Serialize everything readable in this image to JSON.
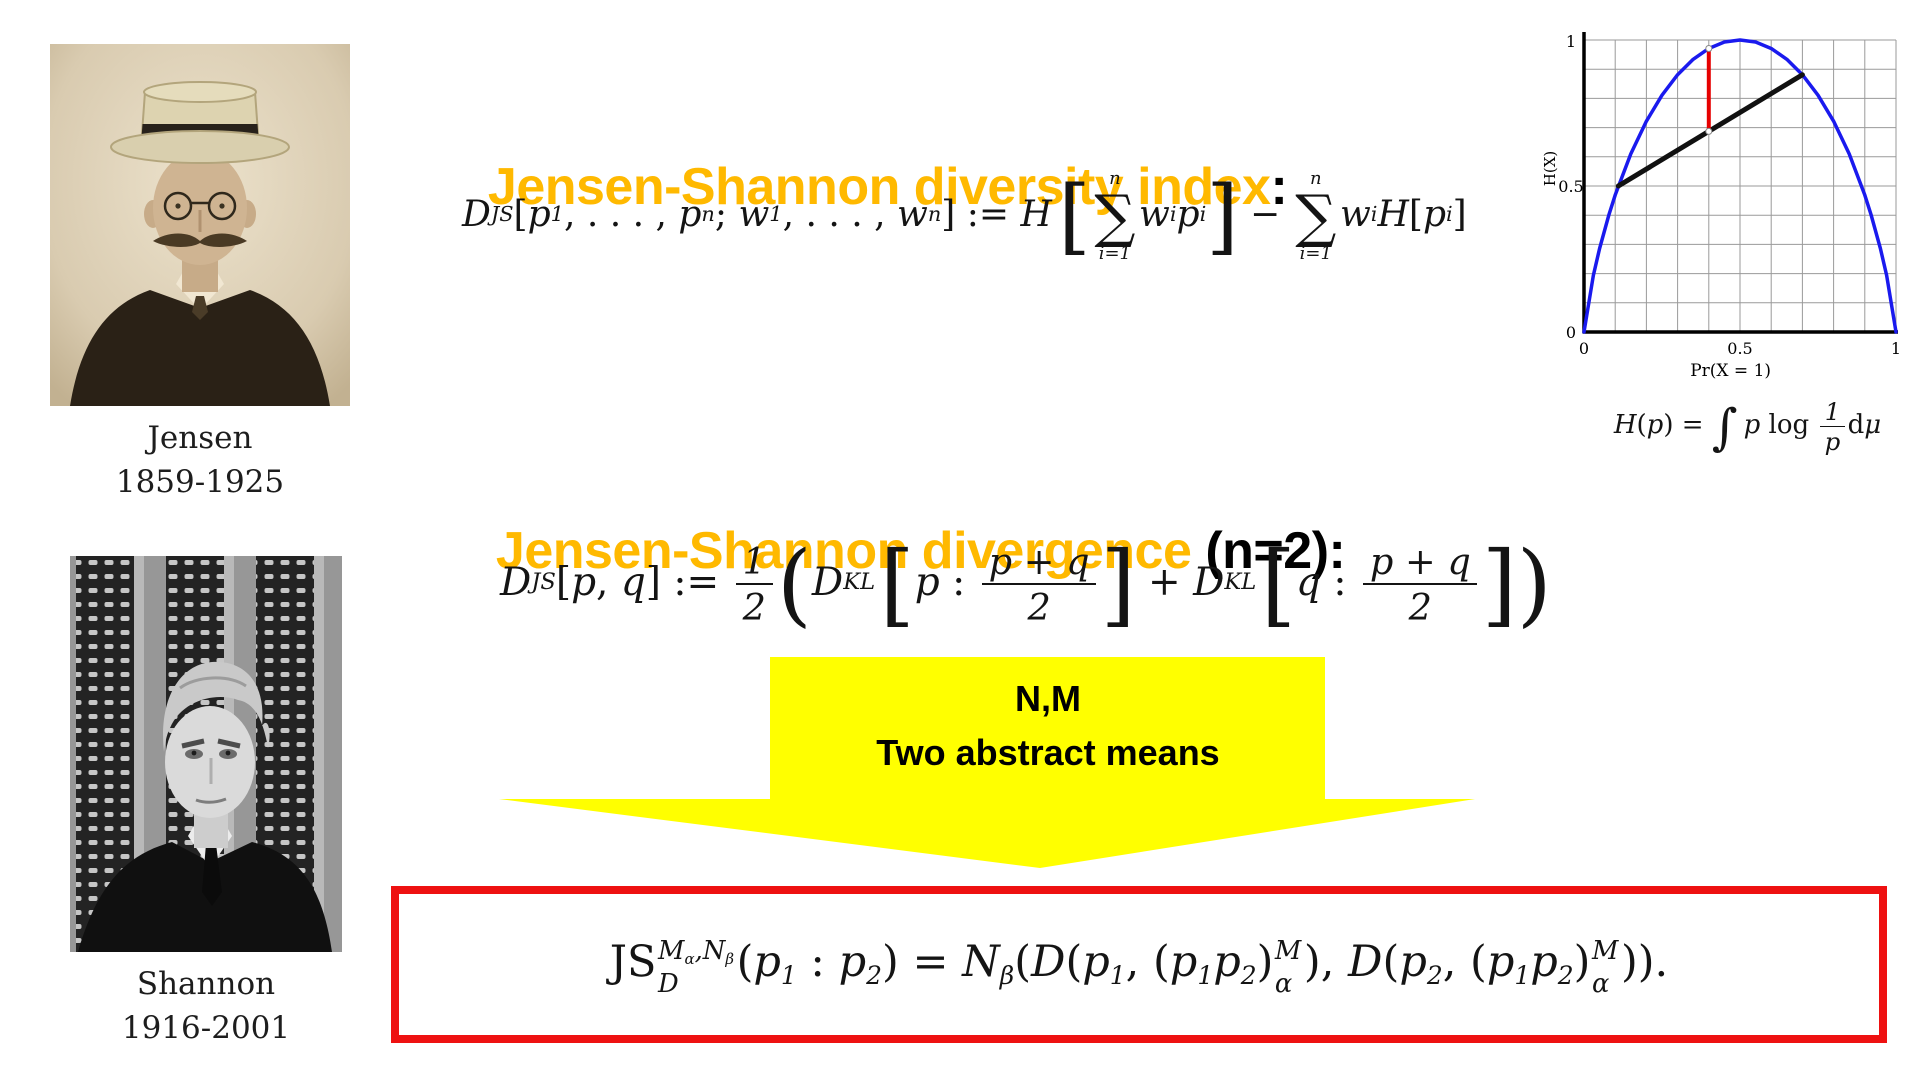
{
  "palette": {
    "orange": "#FFB900",
    "yellow": "#FFFF00",
    "red": "#EE1111",
    "blue": "#1A1AEE"
  },
  "portraits": {
    "jensen": {
      "name": "Jensen",
      "years": "1859-1925"
    },
    "shannon": {
      "name": "Shannon",
      "years": "1916-2001"
    }
  },
  "headings": {
    "diversity_title": "Jensen-Shannon diversity index",
    "diversity_colon": ":",
    "divergence_title": "Jensen-Shannon divergence",
    "divergence_suffix": " (n=2):"
  },
  "arrow": {
    "line1": "N,M",
    "line2": "Two abstract means"
  },
  "formulas": {
    "diversity": [
      {
        "t": "D"
      },
      {
        "sub": "JS"
      },
      {
        "r": "["
      },
      {
        "t": "p"
      },
      {
        "sub": "1"
      },
      {
        "r": ", . . . , "
      },
      {
        "t": "p"
      },
      {
        "sub": "n"
      },
      {
        "r": "; "
      },
      {
        "t": "w"
      },
      {
        "sub": "1"
      },
      {
        "r": ", . . . , "
      },
      {
        "t": "w"
      },
      {
        "sub": "n"
      },
      {
        "r": "] := "
      },
      {
        "t": "H"
      },
      {
        "sp": 0.18
      },
      {
        "b": "["
      },
      {
        "sum": {
          "top": "n",
          "bot": "i=1"
        }
      },
      {
        "t": "w"
      },
      {
        "sub": "i"
      },
      {
        "t": "p"
      },
      {
        "sub": "i"
      },
      {
        "b": "]"
      },
      {
        "r": " − "
      },
      {
        "sum": {
          "top": "n",
          "bot": "i=1"
        }
      },
      {
        "t": "w"
      },
      {
        "sub": "i"
      },
      {
        "t": "H"
      },
      {
        "r": "["
      },
      {
        "t": "p"
      },
      {
        "sub": "i"
      },
      {
        "r": "]"
      }
    ],
    "entropy": [
      {
        "t": "H"
      },
      {
        "r": "("
      },
      {
        "t": "p"
      },
      {
        "r": ") = "
      },
      {
        "int": true
      },
      {
        "sp": 0.12
      },
      {
        "t": "p"
      },
      {
        "r": " log "
      },
      {
        "frac": {
          "n": "1",
          "d": "p"
        }
      },
      {
        "r": "d"
      },
      {
        "t": "μ"
      }
    ],
    "divergence": [
      {
        "t": "D"
      },
      {
        "sub": "JS"
      },
      {
        "r": "["
      },
      {
        "t": "p"
      },
      {
        "r": ", "
      },
      {
        "t": "q"
      },
      {
        "r": "] := "
      },
      {
        "frac": {
          "n": "1",
          "d": "2"
        }
      },
      {
        "b": "("
      },
      {
        "t": "D"
      },
      {
        "sub": "KL"
      },
      {
        "sp": 0.12
      },
      {
        "b": "["
      },
      {
        "t": "p"
      },
      {
        "r": " : "
      },
      {
        "frac": {
          "n": "p + q",
          "d": "2"
        }
      },
      {
        "b": "]"
      },
      {
        "r": " + "
      },
      {
        "t": "D"
      },
      {
        "sub": "KL"
      },
      {
        "sp": 0.12
      },
      {
        "b": "["
      },
      {
        "t": "q"
      },
      {
        "r": " : "
      },
      {
        "frac": {
          "n": "p + q",
          "d": "2"
        }
      },
      {
        "b": "]"
      },
      {
        "b": ")"
      }
    ],
    "generalized": [
      {
        "r": "JS"
      },
      {
        "stk": {
          "sup": [
            {
              "t": "M"
            },
            {
              "sub": "α"
            },
            {
              "t": ",N"
            },
            {
              "sub": "β"
            }
          ],
          "sub": [
            {
              "t": "D"
            }
          ]
        }
      },
      {
        "r": "("
      },
      {
        "t": "p"
      },
      {
        "sub": "1"
      },
      {
        "r": " : "
      },
      {
        "t": "p"
      },
      {
        "sub": "2"
      },
      {
        "r": ") = "
      },
      {
        "t": "N"
      },
      {
        "sub": "β"
      },
      {
        "r": "("
      },
      {
        "t": "D"
      },
      {
        "r": "("
      },
      {
        "t": "p"
      },
      {
        "sub": "1"
      },
      {
        "r": ", ("
      },
      {
        "t": "p"
      },
      {
        "sub": "1"
      },
      {
        "t": "p"
      },
      {
        "sub": "2"
      },
      {
        "r": ")"
      },
      {
        "stk": {
          "sup": [
            {
              "t": "M"
            }
          ],
          "sub": [
            {
              "t": "α"
            }
          ]
        }
      },
      {
        "r": "), "
      },
      {
        "t": "D"
      },
      {
        "r": "("
      },
      {
        "t": "p"
      },
      {
        "sub": "2"
      },
      {
        "r": ", ("
      },
      {
        "t": "p"
      },
      {
        "sub": "1"
      },
      {
        "t": "p"
      },
      {
        "sub": "2"
      },
      {
        "r": ")"
      },
      {
        "stk": {
          "sup": [
            {
              "t": "M"
            }
          ],
          "sub": [
            {
              "t": "α"
            }
          ]
        }
      },
      {
        "r": "))."
      }
    ]
  },
  "chart_data": {
    "type": "line",
    "title": "",
    "xlabel": "Pr(X = 1)",
    "ylabel": "H(X)",
    "xlim": [
      0,
      1
    ],
    "ylim": [
      0,
      1
    ],
    "xticks": [
      "0",
      "0.5",
      "1"
    ],
    "yticks": [
      "0",
      "0.5",
      "1"
    ],
    "grid": true,
    "legend": "none",
    "series": [
      {
        "name": "binary entropy curve H(p)",
        "color": "#1A1AEE",
        "width": 3.5,
        "points": [
          [
            0,
            0
          ],
          [
            0.03,
            0.194
          ],
          [
            0.05,
            0.286
          ],
          [
            0.08,
            0.402
          ],
          [
            0.1,
            0.469
          ],
          [
            0.15,
            0.61
          ],
          [
            0.2,
            0.722
          ],
          [
            0.25,
            0.811
          ],
          [
            0.3,
            0.881
          ],
          [
            0.35,
            0.934
          ],
          [
            0.4,
            0.971
          ],
          [
            0.45,
            0.993
          ],
          [
            0.5,
            1
          ],
          [
            0.55,
            0.993
          ],
          [
            0.6,
            0.971
          ],
          [
            0.65,
            0.934
          ],
          [
            0.7,
            0.881
          ],
          [
            0.75,
            0.811
          ],
          [
            0.8,
            0.722
          ],
          [
            0.85,
            0.61
          ],
          [
            0.9,
            0.469
          ],
          [
            0.92,
            0.402
          ],
          [
            0.95,
            0.286
          ],
          [
            0.97,
            0.194
          ],
          [
            1,
            0
          ]
        ]
      },
      {
        "name": "Jensen chord between (0.11, 0.5) and (0.70, 0.88)",
        "color": "#111111",
        "width": 5,
        "points": [
          [
            0.11,
            0.5
          ],
          [
            0.7,
            0.881
          ]
        ]
      },
      {
        "name": "Jensen gap at p = 0.4 (chord to curve)",
        "color": "#E60000",
        "width": 4,
        "markers": true,
        "points": [
          [
            0.4,
            0.687
          ],
          [
            0.4,
            0.971
          ]
        ]
      }
    ]
  }
}
